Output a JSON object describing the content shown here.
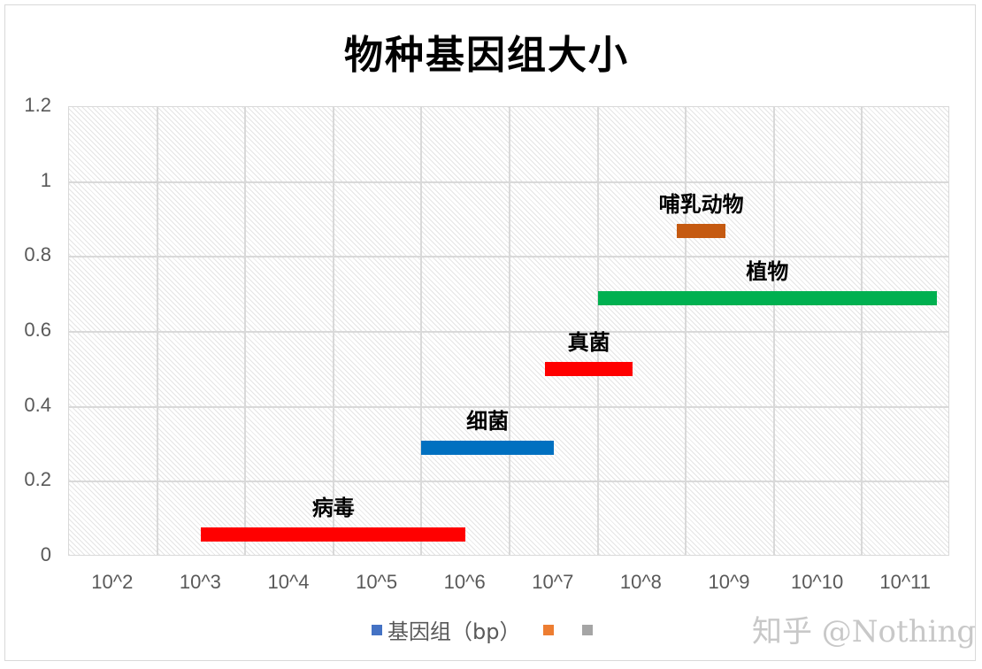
{
  "chart_data": {
    "type": "bar",
    "subtype": "floating-horizontal-range",
    "title": "物种基因组大小",
    "xlabel": "",
    "ylabel": "",
    "x_tick_labels": [
      "10^2",
      "10^3",
      "10^4",
      "10^5",
      "10^6",
      "10^7",
      "10^8",
      "10^9",
      "10^10",
      "10^11"
    ],
    "y_tick_labels": [
      "0",
      "0.2",
      "0.4",
      "0.6",
      "0.8",
      "1",
      "1.2"
    ],
    "ylim": [
      0,
      1.2
    ],
    "xlim_log10": [
      2,
      12
    ],
    "grid": true,
    "legend_position": "bottom",
    "legend": [
      "基因组（bp）",
      "",
      ""
    ],
    "series": [
      {
        "name": "病毒",
        "x_start_log10": 3.5,
        "x_end_log10": 6.5,
        "y": 0.06,
        "color": "#ff0000"
      },
      {
        "name": "细菌",
        "x_start_log10": 6.0,
        "x_end_log10": 7.5,
        "y": 0.29,
        "color": "#0070c0"
      },
      {
        "name": "真菌",
        "x_start_log10": 7.4,
        "x_end_log10": 8.4,
        "y": 0.5,
        "color": "#ff0000"
      },
      {
        "name": "植物",
        "x_start_log10": 8.0,
        "x_end_log10": 11.85,
        "y": 0.69,
        "color": "#00b050"
      },
      {
        "name": "哺乳动物",
        "x_start_log10": 8.9,
        "x_end_log10": 9.45,
        "y": 0.87,
        "color": "#c55a11"
      }
    ]
  },
  "legend_items": [
    {
      "label": "基因组（bp）",
      "color": "#4472c4"
    },
    {
      "label": "",
      "color": "#ed7d31"
    },
    {
      "label": "",
      "color": "#a5a5a5"
    }
  ],
  "watermark": "知乎 @Nothing"
}
